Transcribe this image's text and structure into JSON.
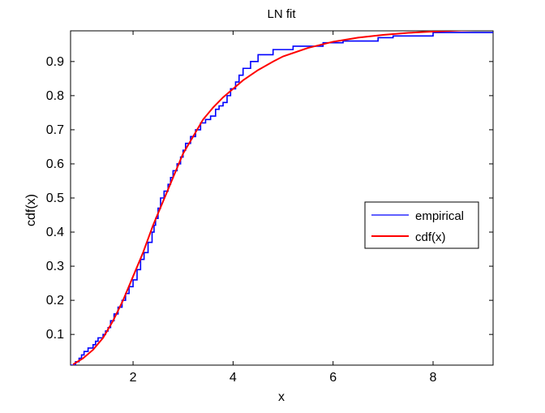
{
  "chart_data": {
    "type": "line",
    "title": "LN fit",
    "xlabel": "x",
    "ylabel": "cdf(x)",
    "xlim": [
      0.75,
      9.2
    ],
    "ylim": [
      0.01,
      0.99
    ],
    "x_ticks": [
      2,
      4,
      6,
      8
    ],
    "y_ticks": [
      0.1,
      0.2,
      0.3,
      0.4,
      0.5,
      0.6,
      0.7,
      0.8,
      0.9
    ],
    "grid": false,
    "legend_position": "right",
    "series": [
      {
        "name": "empirical",
        "color": "#0000ff",
        "style": "step",
        "x": [
          0.75,
          0.85,
          0.92,
          0.97,
          1.02,
          1.1,
          1.2,
          1.25,
          1.3,
          1.4,
          1.45,
          1.5,
          1.55,
          1.62,
          1.7,
          1.78,
          1.85,
          1.92,
          2.0,
          2.08,
          2.15,
          2.22,
          2.3,
          2.38,
          2.42,
          2.45,
          2.5,
          2.55,
          2.62,
          2.7,
          2.75,
          2.8,
          2.88,
          2.95,
          3.0,
          3.05,
          3.15,
          3.25,
          3.35,
          3.45,
          3.55,
          3.65,
          3.72,
          3.8,
          3.88,
          3.95,
          4.05,
          4.12,
          4.2,
          4.35,
          4.5,
          4.8,
          5.2,
          5.8,
          6.2,
          6.9,
          7.2,
          8.0,
          9.2
        ],
        "y": [
          0.01,
          0.02,
          0.03,
          0.04,
          0.05,
          0.06,
          0.07,
          0.08,
          0.09,
          0.1,
          0.11,
          0.12,
          0.14,
          0.16,
          0.18,
          0.2,
          0.22,
          0.24,
          0.26,
          0.29,
          0.32,
          0.34,
          0.37,
          0.4,
          0.42,
          0.44,
          0.47,
          0.5,
          0.52,
          0.54,
          0.56,
          0.58,
          0.6,
          0.62,
          0.64,
          0.66,
          0.68,
          0.7,
          0.72,
          0.73,
          0.74,
          0.76,
          0.77,
          0.78,
          0.8,
          0.82,
          0.84,
          0.86,
          0.88,
          0.9,
          0.92,
          0.935,
          0.945,
          0.955,
          0.96,
          0.97,
          0.975,
          0.985,
          0.985
        ]
      },
      {
        "name": "cdf(x)",
        "color": "#ff0000",
        "style": "line",
        "x": [
          0.8,
          1.0,
          1.2,
          1.4,
          1.6,
          1.8,
          2.0,
          2.2,
          2.4,
          2.6,
          2.8,
          3.0,
          3.2,
          3.4,
          3.6,
          3.8,
          4.0,
          4.2,
          4.5,
          4.8,
          5.0,
          5.5,
          6.0,
          6.5,
          7.0,
          7.5,
          8.0,
          8.5,
          9.0,
          9.2
        ],
        "y": [
          0.012,
          0.03,
          0.055,
          0.09,
          0.14,
          0.2,
          0.27,
          0.34,
          0.42,
          0.49,
          0.56,
          0.63,
          0.68,
          0.73,
          0.765,
          0.795,
          0.82,
          0.845,
          0.875,
          0.9,
          0.915,
          0.94,
          0.958,
          0.97,
          0.978,
          0.984,
          0.988,
          0.991,
          0.993,
          0.994
        ]
      }
    ]
  }
}
